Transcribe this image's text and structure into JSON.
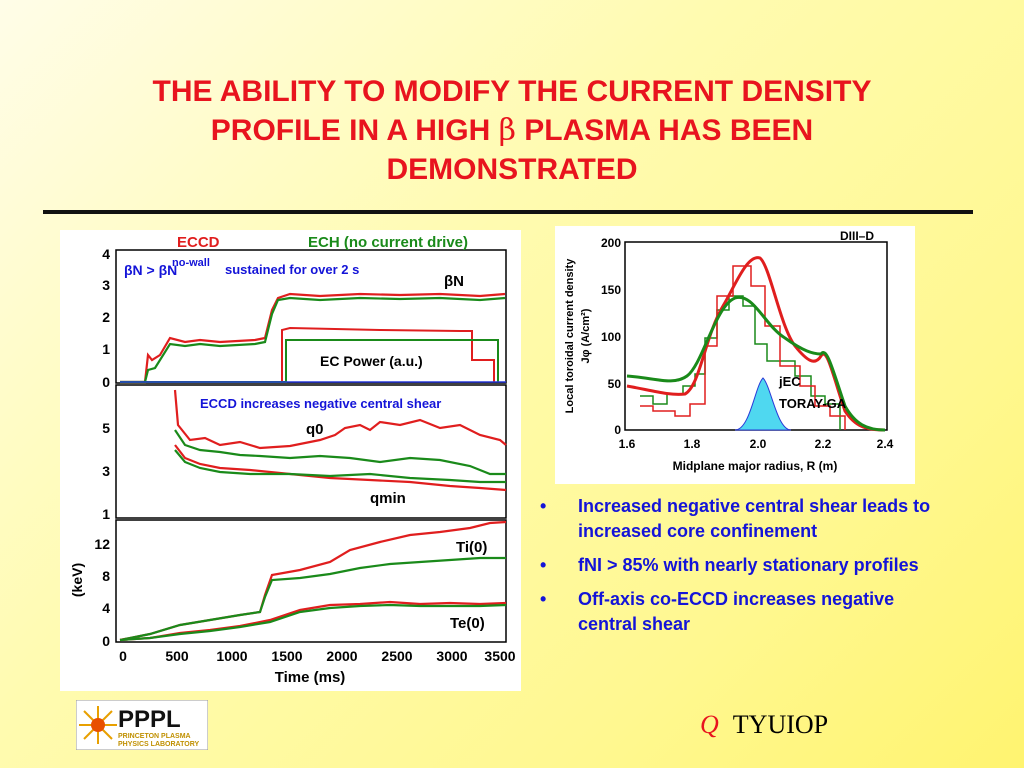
{
  "slide": {
    "title_line1": "THE ABILITY TO MODIFY THE CURRENT DENSITY",
    "title_line2_a": "PROFILE IN A HIGH ",
    "title_beta": "β",
    "title_line2_b": " PLASMA HAS BEEN",
    "title_line3": "DEMONSTRATED"
  },
  "left_figure": {
    "legend_eccd": "ECCD",
    "legend_ech": "ECH (no current drive)",
    "beta_compare": "βN > βN",
    "beta_superscript": "no-wall",
    "sustained": "sustained for over 2 s",
    "beta_label": "βN",
    "ec_power": "EC Power (a.u.)",
    "eccd_shear": "ECCD increases negative central shear",
    "q0_label": "q0",
    "qmin_label": "qmin",
    "ti_label": "Ti(0)",
    "te_label": "Te(0)",
    "kev_label": "(keV)",
    "x_label": "Time (ms)",
    "x_ticks": [
      "0",
      "500",
      "1000",
      "1500",
      "2000",
      "2500",
      "3000",
      "3500"
    ],
    "p1_yticks": [
      "0",
      "1",
      "2",
      "3",
      "4"
    ],
    "p2_yticks": [
      "1",
      "3",
      "5"
    ],
    "p3_yticks": [
      "0",
      "4",
      "8",
      "12"
    ]
  },
  "right_figure": {
    "device": "DIII–D",
    "y_label_1": "Local toroidal current density",
    "y_label_2": "Jφ (A/cm²)",
    "x_label": "Midplane major radius, R  (m)",
    "jec_label": "jEC",
    "toray_label": "TORAY-GA",
    "y_ticks": [
      "0",
      "50",
      "100",
      "150",
      "200"
    ],
    "x_ticks": [
      "1.6",
      "1.8",
      "2.0",
      "2.2",
      "2.4"
    ]
  },
  "bullets": [
    "Increased negative central shear leads to increased core confinement",
    "fNI > 85% with nearly stationary profiles",
    "Off-axis co-ECCD increases negative central shear"
  ],
  "bullet_symbol": "•",
  "logo": {
    "text": "PPPL",
    "line1": "PRINCETON PLASMA",
    "line2": "PHYSICS LABORATORY"
  },
  "footer": {
    "q": "Q",
    "text": "TYUIOP"
  },
  "colors": {
    "title": "#e8141e",
    "bullets": "#1414d8",
    "eccd": "#e01e1e",
    "ech": "#1a8a1a",
    "jec_fill": "#4fd8f0"
  }
}
